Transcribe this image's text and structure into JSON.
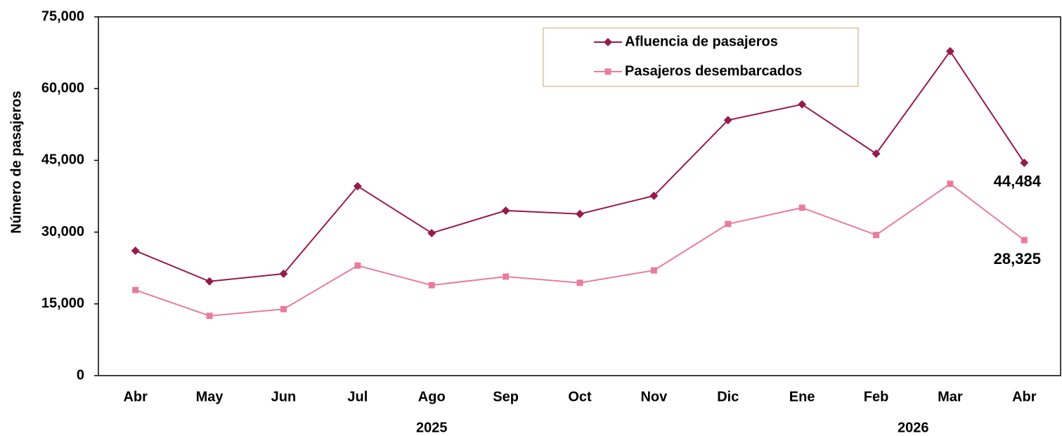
{
  "chart_data": {
    "type": "line",
    "y_label": "Número de pasajeros",
    "categories": [
      "Abr",
      "May",
      "Jun",
      "Jul",
      "Ago",
      "Sep",
      "Oct",
      "Nov",
      "Dic",
      "Ene",
      "Feb",
      "Mar",
      "Abr"
    ],
    "x_groups": [
      "2025",
      "2026"
    ],
    "series": [
      {
        "name": "Afluencia de pasajeros",
        "color": "#971a4c",
        "marker": "diamond",
        "values": [
          26100,
          19700,
          21300,
          39600,
          29800,
          34500,
          33800,
          37600,
          53400,
          56700,
          46400,
          67800,
          44484
        ],
        "value_labels": [
          null,
          null,
          null,
          null,
          null,
          null,
          null,
          null,
          null,
          null,
          null,
          null,
          "44,484"
        ]
      },
      {
        "name": "Pasajeros desembarcados",
        "color": "#e87d9b",
        "marker": "square",
        "values": [
          17900,
          12500,
          13900,
          23000,
          18900,
          20700,
          19400,
          22000,
          31700,
          35100,
          29400,
          40100,
          28325
        ],
        "value_labels": [
          null,
          null,
          null,
          null,
          null,
          null,
          null,
          null,
          null,
          null,
          null,
          null,
          "28,325"
        ]
      }
    ],
    "ylim": [
      0,
      75000
    ],
    "yticks": [
      0,
      {
        "value": 15000,
        "label": "15,000"
      },
      {
        "value": 30000,
        "label": "30,000"
      },
      {
        "value": 45000,
        "label": "45,000"
      },
      {
        "value": 60000,
        "label": "60,000"
      },
      {
        "value": 75000,
        "label": "75,000"
      }
    ],
    "grid": false,
    "legend": "top"
  }
}
